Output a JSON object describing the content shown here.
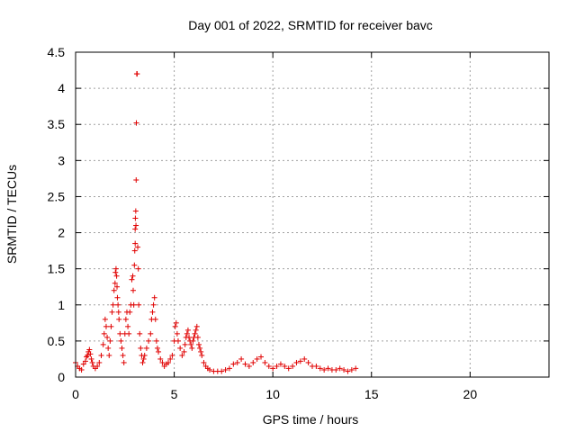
{
  "chart_data": {
    "type": "scatter",
    "title": "Day 001 of 2022, SRMTID for receiver bavc",
    "xlabel": "GPS time / hours",
    "ylabel": "SRMTID / TECUs",
    "xlim": [
      0,
      24
    ],
    "ylim": [
      0,
      4.5
    ],
    "xticks": [
      0,
      5,
      10,
      15,
      20
    ],
    "xtick_labels": [
      "0",
      "5",
      "10",
      "15",
      "20"
    ],
    "yticks": [
      0,
      0.5,
      1,
      1.5,
      2,
      2.5,
      3,
      3.5,
      4,
      4.5
    ],
    "ytick_labels": [
      "0",
      "0.5",
      "1",
      "1.5",
      "2",
      "2.5",
      "3",
      "3.5",
      "4",
      "4.5"
    ],
    "grid": true,
    "marker": "+",
    "color": "#e00000",
    "series": [
      {
        "name": "SRMTID",
        "x": [
          0.0,
          0.1,
          0.2,
          0.3,
          0.4,
          0.5,
          0.55,
          0.6,
          0.65,
          0.7,
          0.75,
          0.8,
          0.85,
          0.9,
          1.0,
          1.1,
          1.2,
          1.3,
          1.4,
          1.45,
          1.5,
          1.55,
          1.6,
          1.65,
          1.7,
          1.75,
          1.8,
          1.85,
          1.9,
          1.95,
          2.0,
          2.02,
          2.05,
          2.08,
          2.1,
          2.12,
          2.15,
          2.18,
          2.2,
          2.25,
          2.3,
          2.35,
          2.4,
          2.45,
          2.5,
          2.55,
          2.6,
          2.65,
          2.7,
          2.75,
          2.8,
          2.85,
          2.9,
          2.92,
          2.95,
          2.98,
          3.0,
          3.02,
          3.02,
          3.03,
          3.05,
          3.06,
          3.07,
          3.08,
          3.1,
          3.12,
          3.15,
          3.18,
          3.2,
          3.25,
          3.3,
          3.35,
          3.4,
          3.45,
          3.5,
          3.6,
          3.7,
          3.8,
          3.85,
          3.9,
          3.95,
          4.0,
          4.05,
          4.1,
          4.15,
          4.2,
          4.3,
          4.4,
          4.5,
          4.6,
          4.7,
          4.8,
          4.9,
          5.0,
          5.05,
          5.1,
          5.15,
          5.2,
          5.3,
          5.4,
          5.5,
          5.55,
          5.6,
          5.65,
          5.7,
          5.75,
          5.8,
          5.85,
          5.9,
          5.95,
          6.0,
          6.05,
          6.1,
          6.15,
          6.2,
          6.25,
          6.3,
          6.35,
          6.4,
          6.5,
          6.6,
          6.7,
          6.8,
          7.0,
          7.2,
          7.4,
          7.6,
          7.8,
          8.0,
          8.2,
          8.4,
          8.6,
          8.8,
          9.0,
          9.2,
          9.4,
          9.6,
          9.8,
          10.0,
          10.2,
          10.4,
          10.6,
          10.8,
          11.0,
          11.2,
          11.4,
          11.6,
          11.8,
          12.0,
          12.2,
          12.4,
          12.6,
          12.8,
          13.0,
          13.2,
          13.4,
          13.6,
          13.8,
          14.0,
          14.2
        ],
        "y": [
          0.2,
          0.15,
          0.12,
          0.1,
          0.18,
          0.22,
          0.28,
          0.3,
          0.35,
          0.38,
          0.32,
          0.25,
          0.2,
          0.15,
          0.12,
          0.15,
          0.2,
          0.3,
          0.45,
          0.6,
          0.8,
          0.7,
          0.55,
          0.4,
          0.3,
          0.5,
          0.7,
          0.9,
          1.0,
          1.2,
          1.3,
          1.45,
          1.5,
          1.4,
          1.25,
          1.1,
          1.0,
          0.9,
          0.8,
          0.6,
          0.5,
          0.4,
          0.3,
          0.2,
          0.6,
          0.8,
          0.9,
          0.7,
          0.6,
          0.9,
          1.0,
          1.35,
          1.4,
          1.2,
          1.0,
          1.55,
          1.75,
          1.85,
          2.05,
          2.2,
          2.3,
          2.1,
          2.73,
          3.52,
          4.2,
          4.2,
          1.8,
          1.5,
          1.0,
          0.6,
          0.4,
          0.3,
          0.2,
          0.25,
          0.3,
          0.4,
          0.5,
          0.6,
          0.8,
          0.9,
          1.0,
          1.1,
          0.8,
          0.5,
          0.4,
          0.35,
          0.25,
          0.2,
          0.15,
          0.18,
          0.2,
          0.25,
          0.3,
          0.5,
          0.7,
          0.75,
          0.6,
          0.5,
          0.4,
          0.3,
          0.35,
          0.45,
          0.55,
          0.6,
          0.65,
          0.55,
          0.5,
          0.45,
          0.4,
          0.5,
          0.55,
          0.6,
          0.65,
          0.7,
          0.55,
          0.45,
          0.4,
          0.35,
          0.3,
          0.2,
          0.15,
          0.12,
          0.1,
          0.08,
          0.08,
          0.08,
          0.1,
          0.12,
          0.18,
          0.2,
          0.25,
          0.18,
          0.15,
          0.2,
          0.25,
          0.28,
          0.2,
          0.15,
          0.12,
          0.15,
          0.18,
          0.15,
          0.12,
          0.15,
          0.2,
          0.22,
          0.25,
          0.2,
          0.15,
          0.15,
          0.12,
          0.1,
          0.12,
          0.1,
          0.1,
          0.12,
          0.1,
          0.08,
          0.1,
          0.12
        ]
      }
    ]
  }
}
